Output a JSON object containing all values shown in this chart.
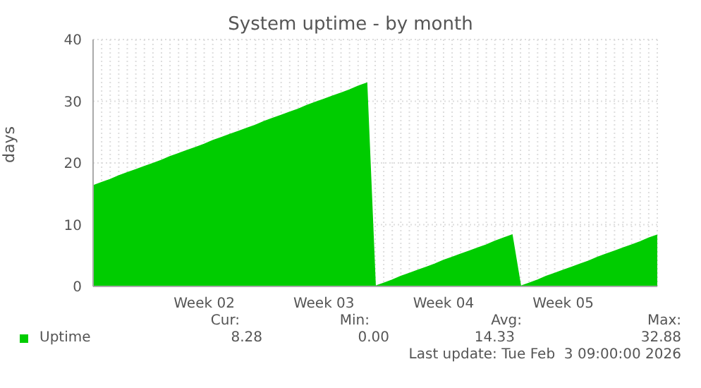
{
  "chart_data": {
    "type": "area",
    "title": "System uptime - by month",
    "ylabel": "days",
    "categories": [
      null,
      null,
      null,
      null,
      null,
      null,
      null,
      null,
      null,
      null,
      null,
      null,
      null,
      "Week 02",
      null,
      null,
      null,
      null,
      null,
      null,
      null,
      null,
      null,
      null,
      null,
      null,
      null,
      "Week 03",
      null,
      null,
      null,
      null,
      null,
      null,
      null,
      null,
      null,
      null,
      null,
      null,
      null,
      "Week 04",
      null,
      null,
      null,
      null,
      null,
      null,
      null,
      null,
      null,
      null,
      null,
      null,
      null,
      "Week 05",
      null,
      null,
      null,
      null,
      null,
      null,
      null,
      null,
      null,
      null,
      null
    ],
    "series": [
      {
        "name": "Uptime",
        "color": "#00cc00",
        "values": [
          16.3,
          16.8,
          17.3,
          17.9,
          18.4,
          18.9,
          19.4,
          19.9,
          20.4,
          21.0,
          21.5,
          22.0,
          22.5,
          23.0,
          23.6,
          24.1,
          24.6,
          25.1,
          25.6,
          26.1,
          26.7,
          27.2,
          27.7,
          28.2,
          28.7,
          29.3,
          29.8,
          30.3,
          30.8,
          31.3,
          31.8,
          32.4,
          32.9,
          0,
          0.5,
          1.0,
          1.6,
          2.1,
          2.6,
          3.1,
          3.6,
          4.2,
          4.7,
          5.2,
          5.7,
          6.2,
          6.7,
          7.3,
          7.8,
          8.3,
          0,
          0.5,
          1.0,
          1.6,
          2.1,
          2.6,
          3.1,
          3.6,
          4.1,
          4.7,
          5.2,
          5.7,
          6.2,
          6.7,
          7.2,
          7.8,
          8.3
        ]
      }
    ],
    "ylim": [
      0,
      40
    ],
    "yticks": [
      0,
      10,
      20,
      30,
      40
    ],
    "grid": true,
    "legend": "bottom",
    "annotations": [
      "Cur:",
      "Min:",
      "Avg:",
      "Max:",
      "8.28",
      "0.00",
      "14.33",
      "32.88",
      "Last update: Tue Feb  3 09:00:00 2026"
    ]
  }
}
